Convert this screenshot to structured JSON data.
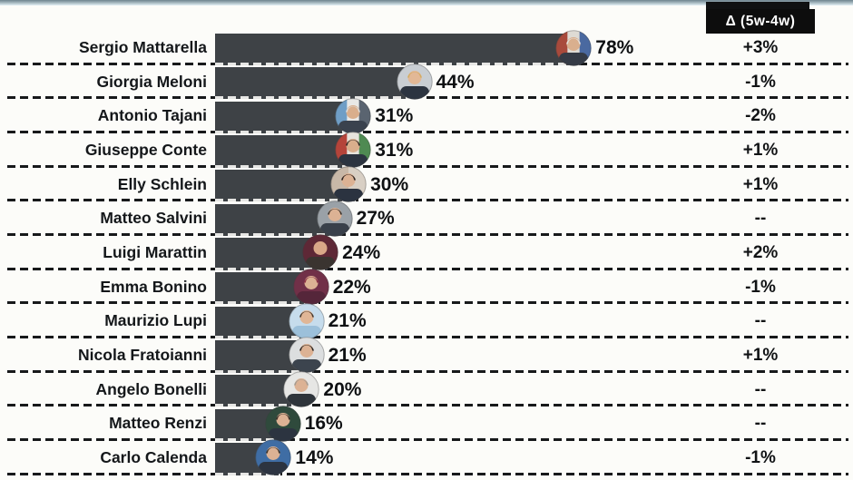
{
  "colors": {
    "background": "#fcfcf9",
    "bar": "#3e4246",
    "delta_box_bg": "#0d0d0d",
    "delta_box_text": "#ffffff",
    "separator": "#17191b"
  },
  "chart_data": {
    "type": "bar",
    "orientation": "horizontal",
    "title": "",
    "unit": "%",
    "value_range": [
      0,
      100
    ],
    "delta_column_header": "Δ (5w-4w)",
    "categories": [
      "Sergio Mattarella",
      "Giorgia Meloni",
      "Antonio Tajani",
      "Giuseppe Conte",
      "Elly Schlein",
      "Matteo Salvini",
      "Luigi Marattin",
      "Emma Bonino",
      "Maurizio Lupi",
      "Nicola Fratoianni",
      "Angelo Bonelli",
      "Matteo Renzi",
      "Carlo Calenda"
    ],
    "values": [
      78,
      44,
      31,
      31,
      30,
      27,
      24,
      22,
      21,
      21,
      20,
      16,
      14
    ],
    "rows": [
      {
        "name": "Sergio Mattarella",
        "value": 78,
        "value_label": "78%",
        "delta": "+3%",
        "avatar": {
          "bg": [
            "#a84a3c",
            "#dedbd4",
            "#4a69a0"
          ],
          "hair": "#e4e2de",
          "skin": "#d9af8e",
          "suit": "#353b46"
        }
      },
      {
        "name": "Giorgia Meloni",
        "value": 44,
        "value_label": "44%",
        "delta": "-1%",
        "avatar": {
          "bg": [
            "#c9ced3"
          ],
          "hair": "#d3ac62",
          "skin": "#e2b896",
          "suit": "#2c3440"
        }
      },
      {
        "name": "Antonio Tajani",
        "value": 31,
        "value_label": "31%",
        "delta": "-2%",
        "avatar": {
          "bg": [
            "#6f9ec6",
            "#e8e8e6",
            "#5a6470"
          ],
          "hair": "#dcdcda",
          "skin": "#d9ae8c",
          "suit": "#3a424e"
        }
      },
      {
        "name": "Giuseppe Conte",
        "value": 31,
        "value_label": "31%",
        "delta": "+1%",
        "avatar": {
          "bg": [
            "#b5443a",
            "#e6e3dc",
            "#4f8a52"
          ],
          "hair": "#2f2a28",
          "skin": "#d9ae8c",
          "suit": "#2c3440"
        }
      },
      {
        "name": "Elly Schlein",
        "value": 30,
        "value_label": "30%",
        "delta": "+1%",
        "avatar": {
          "bg": [
            "#c8b8a8",
            "#d8cfc4"
          ],
          "hair": "#2e2522",
          "skin": "#dcb294",
          "suit": "#2b3340"
        }
      },
      {
        "name": "Matteo Salvini",
        "value": 27,
        "value_label": "27%",
        "delta": "--",
        "avatar": {
          "bg": [
            "#9aa1a7"
          ],
          "hair": "#3c342e",
          "skin": "#dcb294",
          "suit": "#39404a"
        }
      },
      {
        "name": "Luigi Marattin",
        "value": 24,
        "value_label": "24%",
        "delta": "+2%",
        "avatar": {
          "bg": [
            "#5e2836"
          ],
          "hair": "none",
          "skin": "#d9a888",
          "suit": "#3a3430"
        }
      },
      {
        "name": "Emma Bonino",
        "value": 22,
        "value_label": "22%",
        "delta": "-1%",
        "avatar": {
          "bg": [
            "#713048"
          ],
          "hair": "#8e3448",
          "skin": "#dcb294",
          "suit": "#55263a"
        }
      },
      {
        "name": "Maurizio Lupi",
        "value": 21,
        "value_label": "21%",
        "delta": "--",
        "avatar": {
          "bg": [
            "#c6dcec"
          ],
          "hair": "#463a30",
          "skin": "#e0b696",
          "suit": "#9cc0da"
        }
      },
      {
        "name": "Nicola Fratoianni",
        "value": 21,
        "value_label": "21%",
        "delta": "+1%",
        "avatar": {
          "bg": [
            "#dcdedf"
          ],
          "hair": "#2c2826",
          "skin": "#dcb294",
          "suit": "#3c444e"
        }
      },
      {
        "name": "Angelo Bonelli",
        "value": 20,
        "value_label": "20%",
        "delta": "--",
        "avatar": {
          "bg": [
            "#e6e6e4"
          ],
          "hair": "#a29a90",
          "skin": "#dcb294",
          "suit": "#2f353b"
        }
      },
      {
        "name": "Matteo Renzi",
        "value": 16,
        "value_label": "16%",
        "delta": "--",
        "avatar": {
          "bg": [
            "#2f4a3c"
          ],
          "hair": "#3a3028",
          "skin": "#dcb294",
          "suit": "#2c3440"
        }
      },
      {
        "name": "Carlo Calenda",
        "value": 14,
        "value_label": "14%",
        "delta": "-1%",
        "avatar": {
          "bg": [
            "#3f6da4"
          ],
          "hair": "#3a322a",
          "skin": "#dcb294",
          "suit": "#2c3440"
        }
      }
    ]
  }
}
